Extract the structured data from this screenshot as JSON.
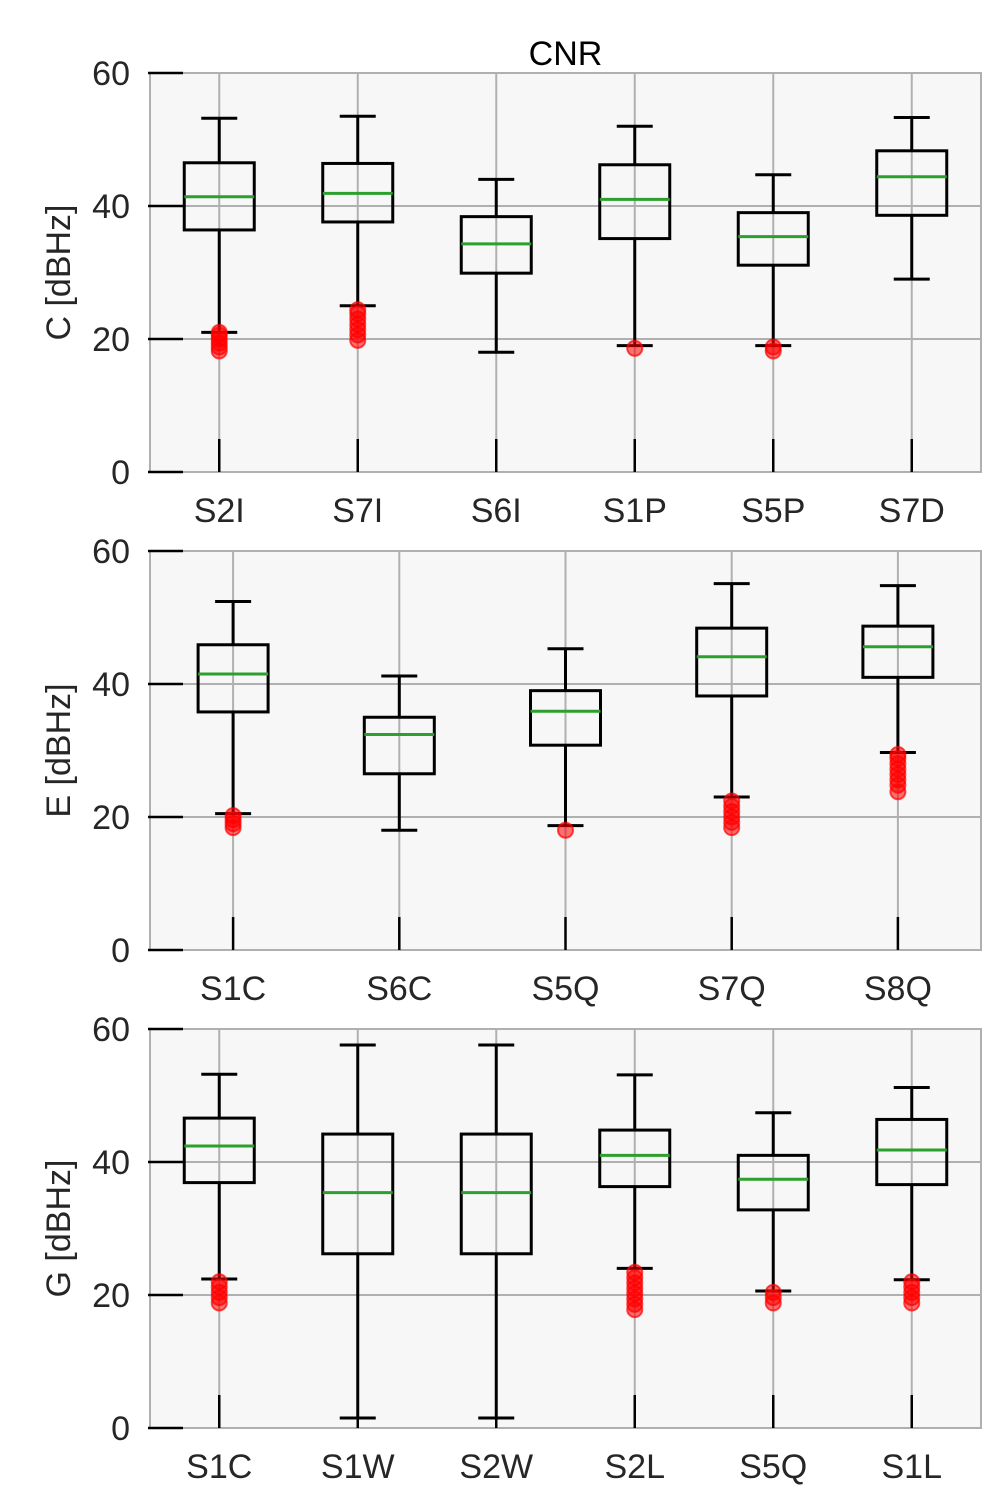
{
  "chart_data": [
    {
      "type": "box",
      "title": "CNR",
      "ylabel": "C [dBHz]",
      "ylim": [
        0,
        60
      ],
      "yticks": [
        0,
        20,
        40,
        60
      ],
      "grid": true,
      "categories": [
        "S2I",
        "S7I",
        "S6I",
        "S1P",
        "S5P",
        "S7D"
      ],
      "boxes": [
        {
          "whislo": 21,
          "q1": 36.4,
          "med": 41.4,
          "q3": 46.5,
          "whishi": 53.2,
          "fliers": [
            18.2,
            18.8,
            19.4,
            20.0,
            20.6,
            21.0
          ]
        },
        {
          "whislo": 25,
          "q1": 37.6,
          "med": 41.9,
          "q3": 46.4,
          "whishi": 53.5,
          "fliers": [
            19.8,
            20.6,
            21.4,
            22.2,
            23.0,
            23.8,
            24.4
          ]
        },
        {
          "whislo": 18,
          "q1": 29.9,
          "med": 34.3,
          "q3": 38.4,
          "whishi": 44.0,
          "fliers": []
        },
        {
          "whislo": 19,
          "q1": 35.1,
          "med": 41.0,
          "q3": 46.2,
          "whishi": 52.0,
          "fliers": [
            18.6
          ]
        },
        {
          "whislo": 19,
          "q1": 31.1,
          "med": 35.4,
          "q3": 39.0,
          "whishi": 44.7,
          "fliers": [
            18.2,
            18.8
          ]
        },
        {
          "whislo": 29,
          "q1": 38.6,
          "med": 44.4,
          "q3": 48.3,
          "whishi": 53.3,
          "fliers": []
        }
      ]
    },
    {
      "type": "box",
      "title": "",
      "ylabel": "E [dBHz]",
      "ylim": [
        0,
        60
      ],
      "yticks": [
        0,
        20,
        40,
        60
      ],
      "grid": true,
      "categories": [
        "S1C",
        "S6C",
        "S5Q",
        "S7Q",
        "S8Q"
      ],
      "boxes": [
        {
          "whislo": 20.5,
          "q1": 35.8,
          "med": 41.5,
          "q3": 45.9,
          "whishi": 52.4,
          "fliers": [
            18.4,
            19.0,
            19.6,
            20.2
          ]
        },
        {
          "whislo": 18,
          "q1": 26.5,
          "med": 32.4,
          "q3": 35.0,
          "whishi": 41.2,
          "fliers": []
        },
        {
          "whislo": 18.7,
          "q1": 30.8,
          "med": 35.9,
          "q3": 39.0,
          "whishi": 45.3,
          "fliers": [
            18.0
          ]
        },
        {
          "whislo": 23,
          "q1": 38.2,
          "med": 44.1,
          "q3": 48.4,
          "whishi": 55.1,
          "fliers": [
            18.4,
            19.2,
            20.0,
            20.8,
            21.6,
            22.4
          ]
        },
        {
          "whislo": 29.7,
          "q1": 41.0,
          "med": 45.6,
          "q3": 48.7,
          "whishi": 54.8,
          "fliers": [
            23.8,
            24.8,
            25.6,
            26.4,
            27.2,
            28.0,
            28.8,
            29.4
          ]
        }
      ]
    },
    {
      "type": "box",
      "title": "",
      "ylabel": "G [dBHz]",
      "ylim": [
        0,
        60
      ],
      "yticks": [
        0,
        20,
        40,
        60
      ],
      "grid": true,
      "categories": [
        "S1C",
        "S1W",
        "S2W",
        "S2L",
        "S5Q",
        "S1L"
      ],
      "boxes": [
        {
          "whislo": 22.4,
          "q1": 36.9,
          "med": 42.4,
          "q3": 46.6,
          "whishi": 53.2,
          "fliers": [
            18.8,
            19.6,
            20.4,
            21.2,
            22.0
          ]
        },
        {
          "whislo": 1.5,
          "q1": 26.2,
          "med": 35.4,
          "q3": 44.2,
          "whishi": 57.6,
          "fliers": []
        },
        {
          "whislo": 1.5,
          "q1": 26.2,
          "med": 35.4,
          "q3": 44.2,
          "whishi": 57.6,
          "fliers": []
        },
        {
          "whislo": 24,
          "q1": 36.3,
          "med": 41.0,
          "q3": 44.8,
          "whishi": 53.1,
          "fliers": [
            17.8,
            18.6,
            19.4,
            20.2,
            21.0,
            21.8,
            22.6,
            23.4
          ]
        },
        {
          "whislo": 20.6,
          "q1": 32.8,
          "med": 37.4,
          "q3": 41.0,
          "whishi": 47.4,
          "fliers": [
            18.8,
            19.6,
            20.4
          ]
        },
        {
          "whislo": 22.3,
          "q1": 36.6,
          "med": 41.8,
          "q3": 46.4,
          "whishi": 51.2,
          "fliers": [
            18.8,
            19.6,
            20.4,
            21.2,
            22.0
          ]
        }
      ]
    }
  ],
  "colors": {
    "axes_bg": "#f7f7f7",
    "grid": "#b0b0b0",
    "box": "#000000",
    "median": "#2ca02c",
    "flier": "#ff0000",
    "spine": "#b0b0b0"
  }
}
